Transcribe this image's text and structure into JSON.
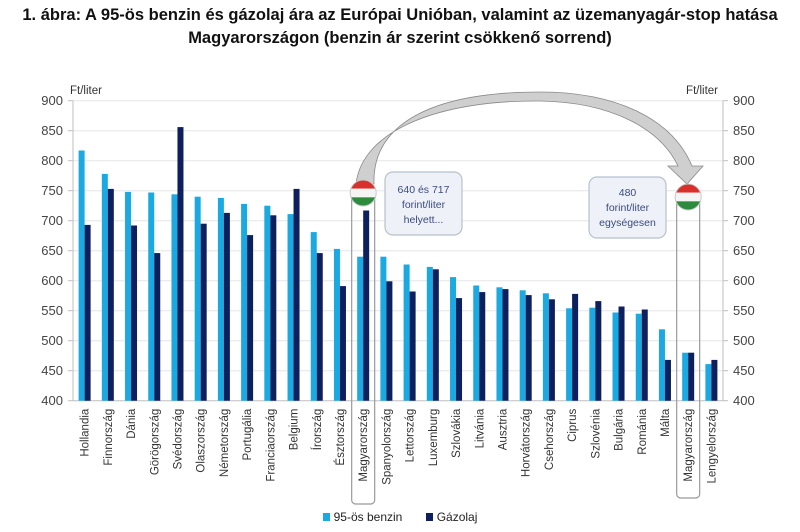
{
  "title": {
    "line1": "1. ábra: A 95-ös benzin és gázolaj ára az Európai Unióban, valamint az üzemanyagár-stop hatása",
    "line2": "Magyarországon (benzin ár szerint csökkenő sorrend)"
  },
  "colors": {
    "benzin": "#1aa9e1",
    "gazolaj": "#0d1f5c",
    "grid": "#e6e6e6",
    "axis": "#bfbfbf",
    "callout_fill": "#eef2f8",
    "callout_stroke": "#b8c0cc",
    "arrow_fill": "#cfcfcf",
    "arrow_stroke": "#8a8a8a"
  },
  "chart_data": {
    "type": "bar",
    "title": "1. ábra: A 95-ös benzin és gázolaj ára az Európai Unióban, valamint az üzemanyagár-stop hatása Magyarországon (benzin ár szerint csökkenő sorrend)",
    "ylabel": "Ft/liter",
    "ylabel_right": "Ft/liter",
    "ylim": [
      400,
      900
    ],
    "yticks": [
      400,
      450,
      500,
      550,
      600,
      650,
      700,
      750,
      800,
      850,
      900
    ],
    "grid": true,
    "legend_position": "bottom",
    "categories": [
      "Hollandia",
      "Finnország",
      "Dánia",
      "Görögország",
      "Svédország",
      "Olaszország",
      "Németország",
      "Portugália",
      "Franciaország",
      "Belgium",
      "Írország",
      "Észtország",
      "Magyarország",
      "Spanyolország",
      "Lettország",
      "Luxemburg",
      "Szlovákia",
      "Litvánia",
      "Ausztria",
      "Horvátország",
      "Csehország",
      "Ciprus",
      "Szlovénia",
      "Bulgária",
      "Románia",
      "Málta",
      "Magyarország",
      "Lengyelország"
    ],
    "series": [
      {
        "name": "95-ös benzin",
        "values": [
          817,
          778,
          748,
          747,
          744,
          740,
          738,
          728,
          725,
          711,
          681,
          653,
          640,
          640,
          627,
          623,
          606,
          592,
          589,
          584,
          579,
          554,
          555,
          547,
          545,
          519,
          480,
          461
        ]
      },
      {
        "name": "Gázolaj",
        "values": [
          693,
          753,
          692,
          646,
          856,
          695,
          713,
          676,
          709,
          753,
          646,
          591,
          717,
          599,
          582,
          619,
          571,
          581,
          586,
          576,
          569,
          578,
          566,
          557,
          552,
          468,
          480,
          468
        ]
      }
    ],
    "highlighted_categories": [
      12,
      26
    ],
    "annotations": [
      {
        "lines": [
          "640 és 717",
          "forint/liter",
          "helyett..."
        ]
      },
      {
        "lines": [
          "480",
          "forint/liter",
          "egységesen"
        ]
      }
    ]
  }
}
